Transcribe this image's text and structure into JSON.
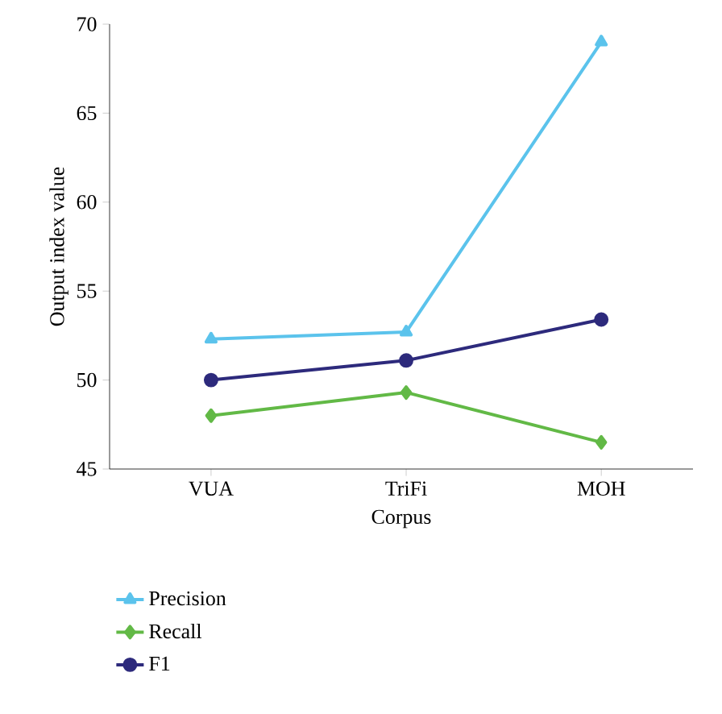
{
  "chart_data": {
    "type": "line",
    "xlabel": "Corpus",
    "ylabel": "Output index value",
    "categories": [
      "VUA",
      "TriFi",
      "MOH"
    ],
    "series": [
      {
        "name": "Precision",
        "color": "#5bc3ec",
        "marker": "triangle",
        "values": [
          52.3,
          52.7,
          69.0
        ]
      },
      {
        "name": "Recall",
        "color": "#62b946",
        "marker": "diamond",
        "values": [
          48.0,
          49.3,
          46.5
        ]
      },
      {
        "name": "F1",
        "color": "#2d2a7c",
        "marker": "circle",
        "values": [
          50.0,
          51.1,
          53.4
        ]
      }
    ],
    "ylim": [
      45,
      70
    ],
    "yticks": [
      45,
      50,
      55,
      60,
      65,
      70
    ],
    "legend": "bottom",
    "grid": false,
    "line_style": "solid"
  }
}
